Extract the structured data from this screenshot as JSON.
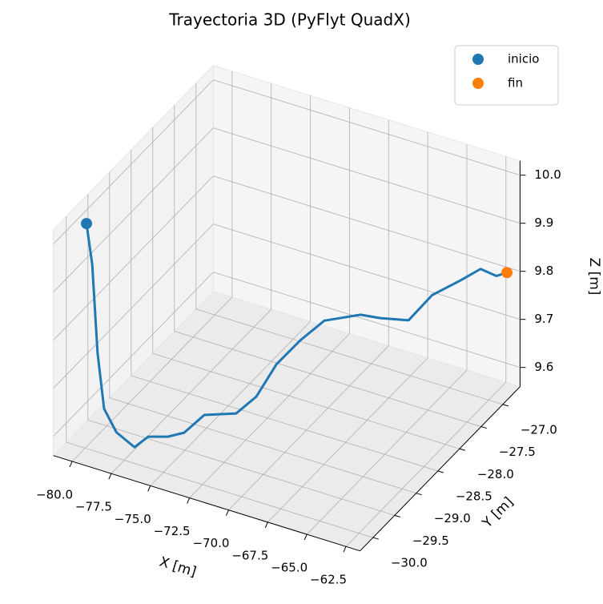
{
  "chart_data": {
    "type": "3d",
    "title": "Trayectoria 3D (PyFlyt QuadX)",
    "xlabel": "X [m]",
    "ylabel": "Y [m]",
    "zlabel": "Z [m]",
    "xlim": [
      -81.2,
      -61.6
    ],
    "ylim": [
      -30.3,
      -26.6
    ],
    "zlim": [
      9.56,
      10.03
    ],
    "xticks": [
      {
        "value": -80,
        "label": "−80.0"
      },
      {
        "value": -77.5,
        "label": "−77.5"
      },
      {
        "value": -75,
        "label": "−75.0"
      },
      {
        "value": -72.5,
        "label": "−72.5"
      },
      {
        "value": -70,
        "label": "−70.0"
      },
      {
        "value": -67.5,
        "label": "−67.5"
      },
      {
        "value": -65,
        "label": "−65.0"
      },
      {
        "value": -62.5,
        "label": "−62.5"
      }
    ],
    "yticks": [
      {
        "value": -30,
        "label": "−30.0"
      },
      {
        "value": -29.5,
        "label": "−29.5"
      },
      {
        "value": -29,
        "label": "−29.0"
      },
      {
        "value": -28.5,
        "label": "−28.5"
      },
      {
        "value": -28,
        "label": "−28.0"
      },
      {
        "value": -27.5,
        "label": "−27.5"
      },
      {
        "value": -27,
        "label": "−27.0"
      }
    ],
    "zticks": [
      9.6,
      9.7,
      9.8,
      9.9,
      {
        "value": 10,
        "label": "10.0"
      }
    ],
    "grid": true,
    "legend": "upper right",
    "series": [
      {
        "kind": "line",
        "color": "#1f77b4",
        "x": [
          -79.91,
          -79.93,
          -79.95,
          -79.92,
          -79.52,
          -78.72,
          -78.23,
          -77.33,
          -76.68,
          -75.78,
          -74.11,
          -73.21,
          -72.3,
          -71.15,
          -69.99,
          -68.06,
          -67.16,
          -65.74,
          -64.59,
          -63.17,
          -62.27,
          -61.62,
          -61.33
        ],
        "y": [
          -30.0,
          -29.86,
          -29.73,
          -29.59,
          -29.45,
          -29.32,
          -29.18,
          -29.05,
          -28.91,
          -28.77,
          -28.64,
          -28.5,
          -28.36,
          -28.23,
          -28.09,
          -27.95,
          -27.82,
          -27.68,
          -27.55,
          -27.41,
          -27.27,
          -27.14,
          -27.0
        ],
        "z": [
          10.028,
          9.93,
          9.734,
          9.605,
          9.547,
          9.512,
          9.526,
          9.523,
          9.525,
          9.558,
          9.566,
          9.597,
          9.661,
          9.71,
          9.75,
          9.769,
          9.759,
          9.756,
          9.808,
          9.84,
          9.86,
          9.84,
          9.837
        ]
      },
      {
        "kind": "scatter",
        "name": "inicio",
        "color": "#1f77b4",
        "x": [
          -79.91
        ],
        "y": [
          -30.0
        ],
        "z": [
          10.028
        ]
      },
      {
        "kind": "scatter",
        "name": "fin",
        "color": "#ff7f0e",
        "x": [
          -61.33
        ],
        "y": [
          -27.0
        ],
        "z": [
          9.837
        ]
      }
    ]
  }
}
